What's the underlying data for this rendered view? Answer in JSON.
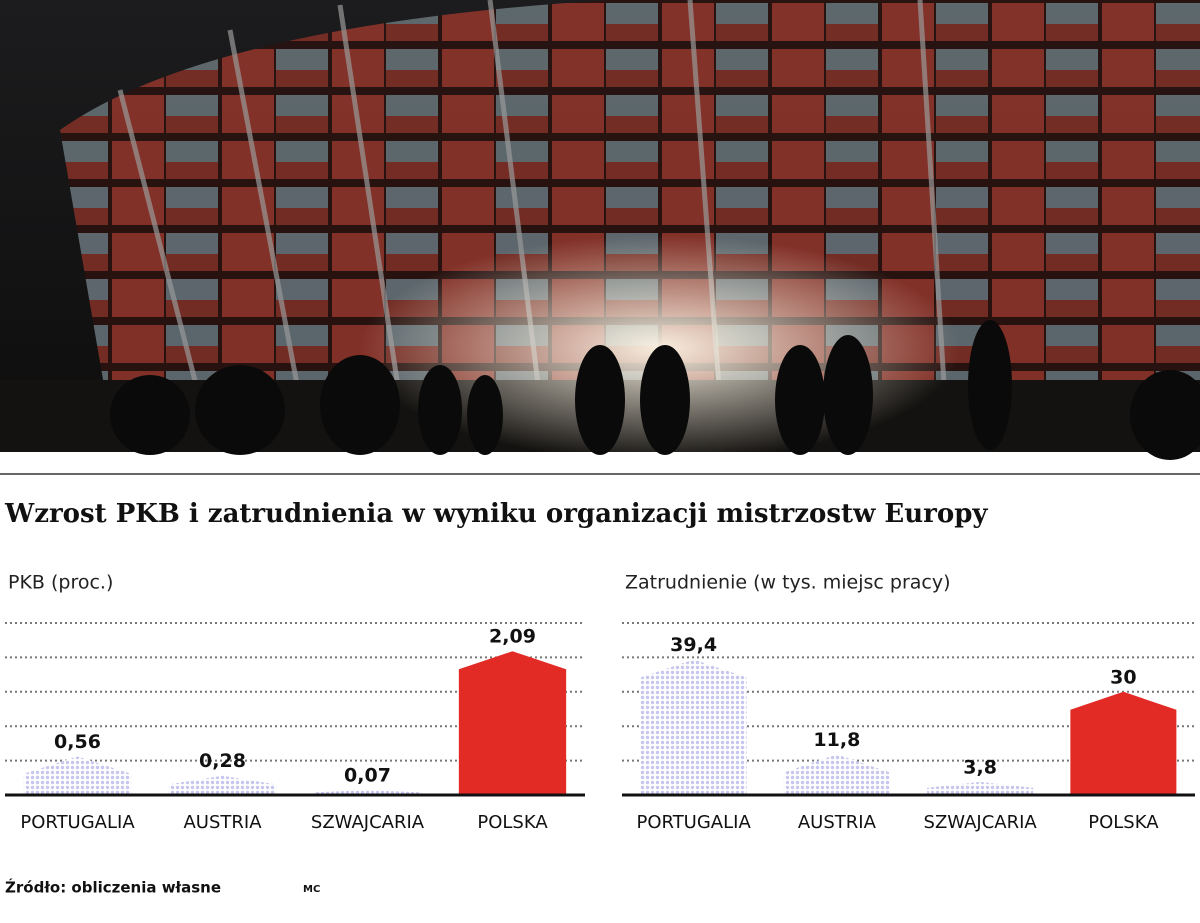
{
  "title": "Wzrost PKB i zatrudnienia w wyniku organizacji mistrzostw Europy",
  "source": "Źródło: obliczenia własne",
  "credit": "MC",
  "chart_data": [
    {
      "type": "bar",
      "title": "PKB (proc.)",
      "categories": [
        "PORTUGALIA",
        "AUSTRIA",
        "SZWAJCARIA",
        "POLSKA"
      ],
      "values": [
        0.56,
        0.28,
        0.07,
        2.09
      ],
      "value_labels": [
        "0,56",
        "0,28",
        "0,07",
        "2,09"
      ],
      "colors": [
        "#c6c6ee",
        "#c6c6ee",
        "#c6c6ee",
        "#e32b26"
      ],
      "fills": [
        "dotted",
        "dotted",
        "dotted",
        "solid"
      ],
      "ylim": [
        0,
        2.5
      ],
      "yticks": [
        0,
        0.5,
        1,
        1.5,
        2,
        2.5
      ],
      "grid": true
    },
    {
      "type": "bar",
      "title": "Zatrudnienie (w tys. miejsc pracy)",
      "categories": [
        "PORTUGALIA",
        "AUSTRIA",
        "SZWAJCARIA",
        "POLSKA"
      ],
      "values": [
        39.4,
        11.8,
        3.8,
        30
      ],
      "value_labels": [
        "39,4",
        "11,8",
        "3,8",
        "30"
      ],
      "colors": [
        "#c6c6ee",
        "#c6c6ee",
        "#c6c6ee",
        "#e32b26"
      ],
      "fills": [
        "dotted",
        "dotted",
        "dotted",
        "solid"
      ],
      "ylim": [
        0,
        50
      ],
      "yticks": [
        0,
        10,
        20,
        30,
        40,
        50
      ],
      "grid": true
    }
  ]
}
